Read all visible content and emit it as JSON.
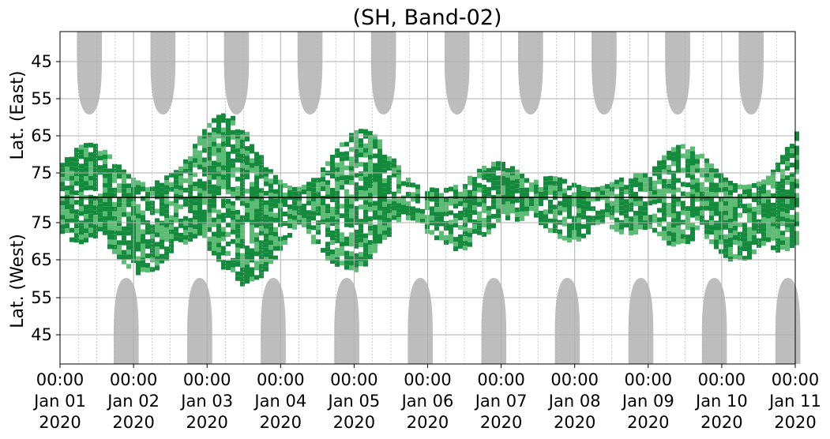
{
  "chart_data": {
    "type": "heatmap",
    "title": "(SH, Band-02)",
    "ylabel_top": "Lat. (East)",
    "ylabel_bottom": "Lat. (West)",
    "y_ticks_east": [
      "45",
      "55",
      "65",
      "75"
    ],
    "y_ticks_west": [
      "75",
      "65",
      "55",
      "45"
    ],
    "x_ticks": [
      {
        "time": "00:00",
        "date": "Jan 01",
        "year": "2020"
      },
      {
        "time": "00:00",
        "date": "Jan 02",
        "year": "2020"
      },
      {
        "time": "00:00",
        "date": "Jan 03",
        "year": "2020"
      },
      {
        "time": "00:00",
        "date": "Jan 04",
        "year": "2020"
      },
      {
        "time": "00:00",
        "date": "Jan 05",
        "year": "2020"
      },
      {
        "time": "00:00",
        "date": "Jan 06",
        "year": "2020"
      },
      {
        "time": "00:00",
        "date": "Jan 07",
        "year": "2020"
      },
      {
        "time": "00:00",
        "date": "Jan 08",
        "year": "2020"
      },
      {
        "time": "00:00",
        "date": "Jan 09",
        "year": "2020"
      },
      {
        "time": "00:00",
        "date": "Jan 10",
        "year": "2020"
      },
      {
        "time": "00:00",
        "date": "Jan 11",
        "year": "2020"
      }
    ],
    "x_range": [
      "2020-01-01 00:00",
      "2020-01-11 00:00"
    ],
    "grid": true,
    "colors": {
      "activity_strong": "#138a3c",
      "activity_weak": "#5cbb74",
      "daylight_mask": "#bdbdbd",
      "grid": "#b0b0b0",
      "equator_line": "#000000"
    },
    "daylight_lobes_top": [
      0.4,
      1.4,
      2.4,
      3.4,
      4.4,
      5.4,
      6.4,
      7.4,
      8.4,
      9.4
    ],
    "daylight_lobes_bottom": [
      0.9,
      1.9,
      2.9,
      3.9,
      4.9,
      5.9,
      6.9,
      7.9,
      8.9,
      9.9
    ]
  }
}
